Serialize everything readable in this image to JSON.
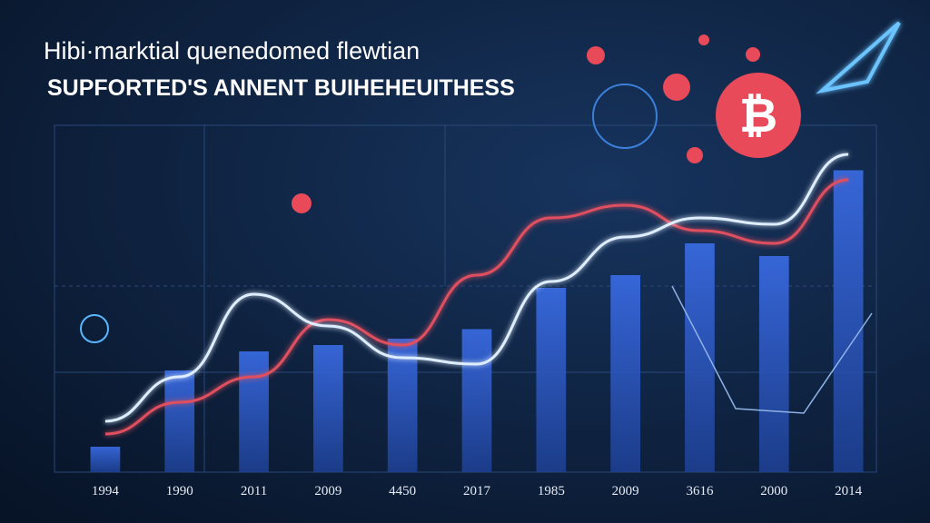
{
  "chart_data": {
    "type": "bar",
    "title": "Hibi·marktial quenedomed flewtian",
    "subtitle": "SUPFORTED'S ANNENT BUIHEHEUITHESS",
    "categories": [
      "1994",
      "1990",
      "2011",
      "2009",
      "4450",
      "2017",
      "1985",
      "2009",
      "3616",
      "2000",
      "2014"
    ],
    "values": [
      8,
      32,
      38,
      40,
      42,
      45,
      58,
      62,
      72,
      68,
      95
    ],
    "color": "#2f5fd0",
    "ylim": [
      0,
      100
    ],
    "lines": [
      {
        "color": "#e0505e",
        "values": [
          12,
          22,
          30,
          48,
          40,
          62,
          80,
          84,
          76,
          72,
          92
        ]
      },
      {
        "color": "#dfeeff",
        "values": [
          16,
          30,
          56,
          46,
          36,
          34,
          60,
          74,
          80,
          78,
          100
        ]
      }
    ]
  }
}
